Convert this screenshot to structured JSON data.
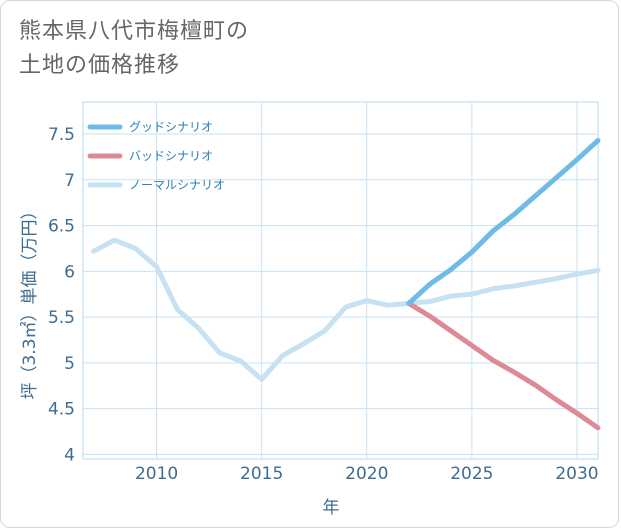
{
  "page": {
    "title_lines": [
      "熊本県八代市梅檀町の",
      "土地の価格推移"
    ]
  },
  "chart_data": {
    "type": "line",
    "xlabel": "年",
    "ylabel": "坪（3.3㎡）単価（万円）",
    "xlim": [
      2006.5,
      2031
    ],
    "ylim": [
      3.95,
      7.85
    ],
    "xticks": [
      2010,
      2015,
      2020,
      2025,
      2030
    ],
    "yticks": [
      4,
      4.5,
      5,
      5.5,
      6,
      6.5,
      7,
      7.5
    ],
    "ytick_labels": [
      "4",
      "4.5",
      "5",
      "5.5",
      "6",
      "6.5",
      "7",
      "7.5"
    ],
    "legend_position": "top-left",
    "grid": true,
    "series": [
      {
        "name": "グッドシナリオ",
        "color": "#6ebbe8",
        "points": [
          [
            2022,
            5.65
          ],
          [
            2023,
            5.86
          ],
          [
            2024,
            6.02
          ],
          [
            2025,
            6.21
          ],
          [
            2026,
            6.44
          ],
          [
            2027,
            6.62
          ],
          [
            2028,
            6.82
          ],
          [
            2029,
            7.02
          ],
          [
            2030,
            7.22
          ],
          [
            2031,
            7.43
          ]
        ]
      },
      {
        "name": "バッドシナリオ",
        "color": "#dc8b96",
        "points": [
          [
            2022,
            5.65
          ],
          [
            2023,
            5.51
          ],
          [
            2024,
            5.35
          ],
          [
            2025,
            5.19
          ],
          [
            2026,
            5.03
          ],
          [
            2027,
            4.9
          ],
          [
            2028,
            4.76
          ],
          [
            2029,
            4.6
          ],
          [
            2030,
            4.45
          ],
          [
            2031,
            4.29
          ]
        ]
      },
      {
        "name": "ノーマルシナリオ",
        "color": "#c6e2f2",
        "points": [
          [
            2007,
            6.22
          ],
          [
            2008,
            6.34
          ],
          [
            2009,
            6.25
          ],
          [
            2010,
            6.05
          ],
          [
            2011,
            5.58
          ],
          [
            2012,
            5.38
          ],
          [
            2013,
            5.11
          ],
          [
            2014,
            5.02
          ],
          [
            2015,
            4.82
          ],
          [
            2016,
            5.08
          ],
          [
            2017,
            5.21
          ],
          [
            2018,
            5.35
          ],
          [
            2019,
            5.61
          ],
          [
            2020,
            5.68
          ],
          [
            2021,
            5.63
          ],
          [
            2022,
            5.65
          ],
          [
            2023,
            5.67
          ],
          [
            2024,
            5.73
          ],
          [
            2025,
            5.75
          ],
          [
            2026,
            5.81
          ],
          [
            2027,
            5.84
          ],
          [
            2028,
            5.88
          ],
          [
            2029,
            5.92
          ],
          [
            2030,
            5.97
          ],
          [
            2031,
            6.01
          ]
        ]
      }
    ]
  }
}
